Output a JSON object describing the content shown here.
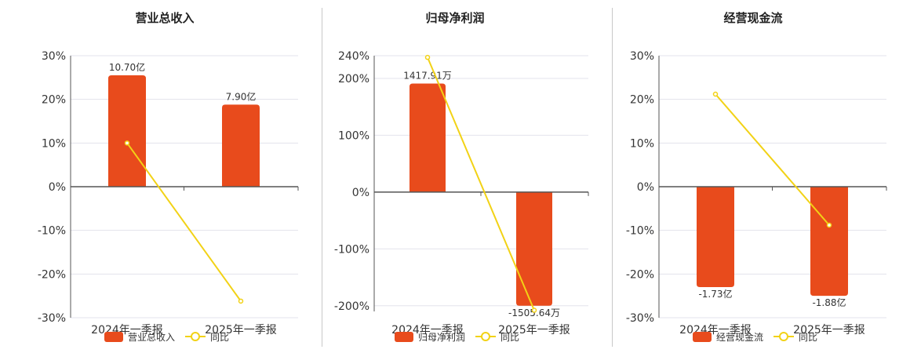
{
  "chart_data": [
    {
      "type": "bar",
      "title": "营业总收入",
      "categories": [
        "2024年一季报",
        "2025年一季报"
      ],
      "yticks": [
        "30%",
        "20%",
        "10%",
        "0%",
        "-10%",
        "-20%",
        "-30%"
      ],
      "ylim": [
        -30,
        30
      ],
      "grid": true,
      "legend": "bottom",
      "series": [
        {
          "name": "营业总收入",
          "kind": "bar",
          "values": [
            25.5,
            18.8
          ],
          "labels": [
            "10.70亿",
            "7.90亿"
          ]
        },
        {
          "name": "同比",
          "kind": "line",
          "values": [
            10.0,
            -26.2
          ]
        }
      ]
    },
    {
      "type": "bar",
      "title": "归母净利润",
      "categories": [
        "2024年一季报",
        "2025年一季报"
      ],
      "yticks": [
        "240%",
        "200%",
        "100%",
        "0%",
        "-100%",
        "-200%"
      ],
      "ylim": [
        -210,
        240
      ],
      "grid": true,
      "legend": "bottom",
      "series": [
        {
          "name": "归母净利润",
          "kind": "bar",
          "values": [
            191,
            -200
          ],
          "labels": [
            "1417.91万",
            "-1505.64万"
          ]
        },
        {
          "name": "同比",
          "kind": "line",
          "values": [
            237,
            -208
          ]
        }
      ]
    },
    {
      "type": "bar",
      "title": "经营现金流",
      "categories": [
        "2024年一季报",
        "2025年一季报"
      ],
      "yticks": [
        "30%",
        "20%",
        "10%",
        "0%",
        "-10%",
        "-20%",
        "-30%"
      ],
      "ylim": [
        -30,
        30
      ],
      "grid": true,
      "legend": "bottom",
      "series": [
        {
          "name": "经营现金流",
          "kind": "bar",
          "values": [
            -23.0,
            -25.0
          ],
          "labels": [
            "-1.73亿",
            "-1.88亿"
          ]
        },
        {
          "name": "同比",
          "kind": "line",
          "values": [
            21.2,
            -8.8
          ]
        }
      ]
    }
  ],
  "colors": {
    "bar": "#e84b1c",
    "line": "#f2d216",
    "axis": "#555555",
    "grid": "#e3e3ec"
  }
}
